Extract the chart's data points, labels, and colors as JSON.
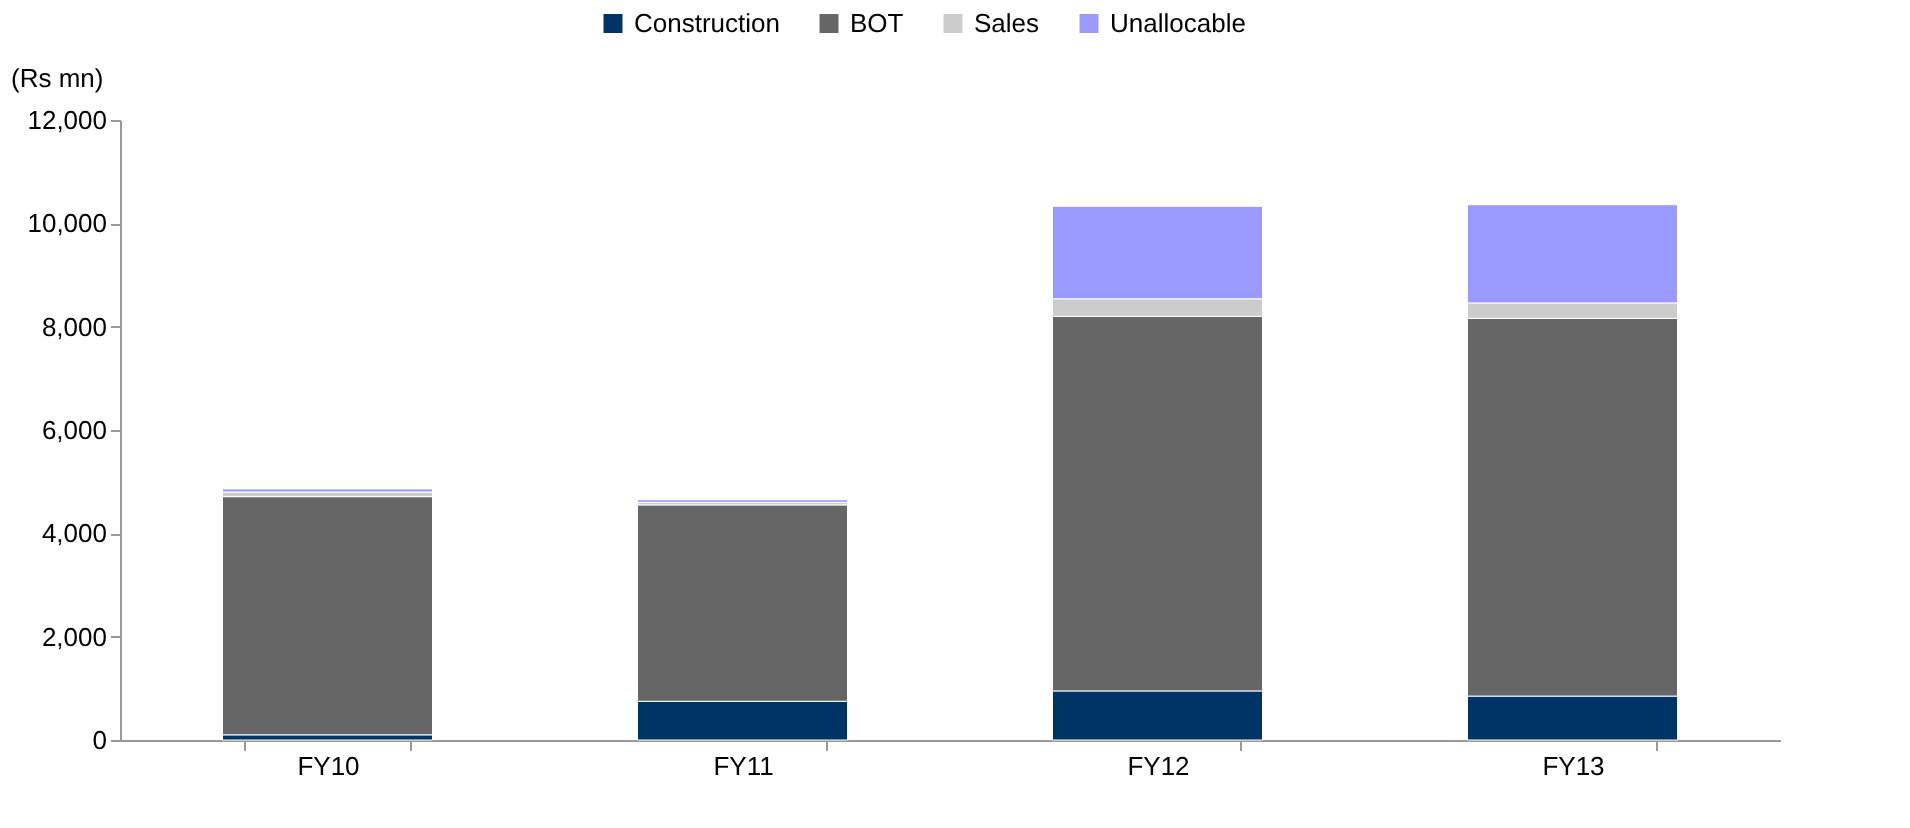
{
  "chart_data": {
    "type": "bar",
    "stacked": true,
    "ylabel": "(Rs mn)",
    "categories": [
      "FY10",
      "FY11",
      "FY12",
      "FY13"
    ],
    "series": [
      {
        "name": "Construction",
        "color": "#003366",
        "values": [
          100,
          750,
          950,
          850
        ]
      },
      {
        "name": "BOT",
        "color": "#666666",
        "values": [
          4610,
          3800,
          7250,
          7310
        ]
      },
      {
        "name": "Sales",
        "color": "#cccccc",
        "values": [
          90,
          50,
          340,
          300
        ]
      },
      {
        "name": "Unallocable",
        "color": "#9999ff",
        "values": [
          60,
          50,
          1790,
          1900
        ]
      }
    ],
    "ylim": [
      0,
      12000
    ],
    "yticks": [
      0,
      {
        "value": 2000,
        "label": "2,000"
      },
      {
        "value": 4000,
        "label": "4,000"
      },
      {
        "value": 6000,
        "label": "6,000"
      },
      {
        "value": 8000,
        "label": "8,000"
      },
      {
        "value": 10000,
        "label": "10,000"
      },
      {
        "value": 12000,
        "label": "12,000"
      }
    ],
    "grid": false,
    "legend": "top"
  }
}
